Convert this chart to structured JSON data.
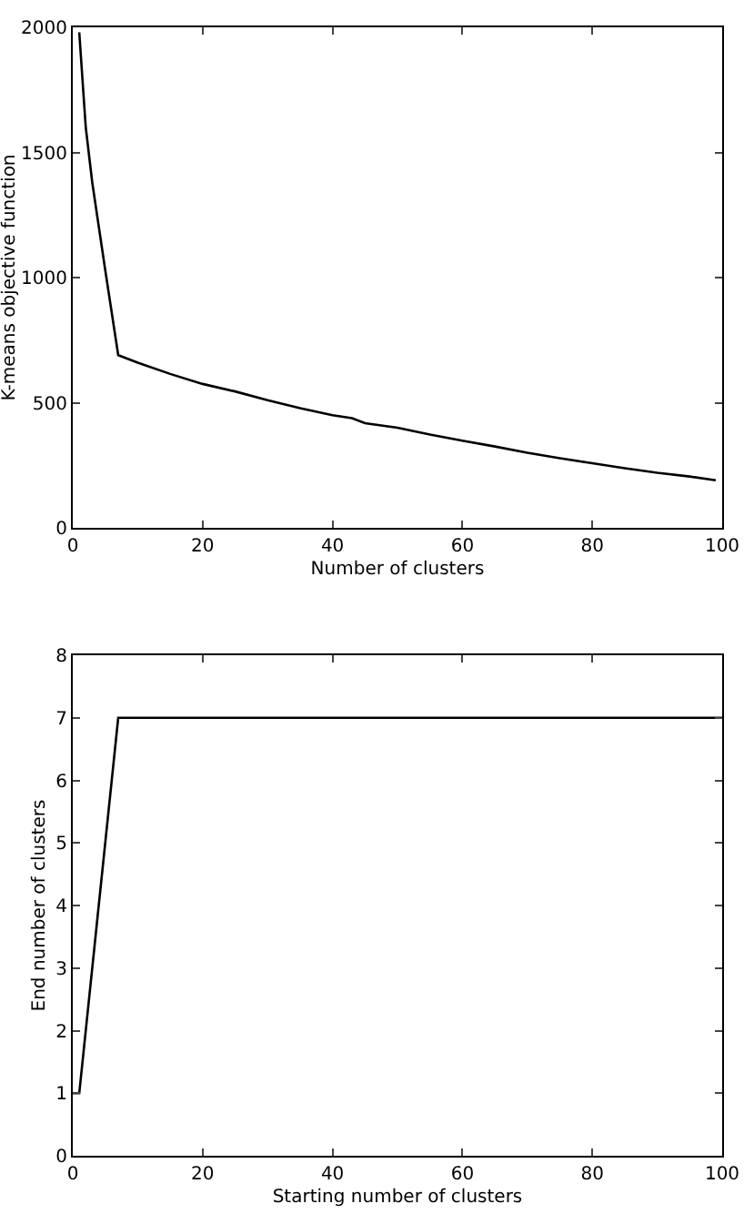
{
  "chart_data": [
    {
      "type": "line",
      "xlabel": "Number of clusters",
      "ylabel": "K-means objective function",
      "xlim": [
        0,
        100
      ],
      "ylim": [
        0,
        2000
      ],
      "xticks": [
        0,
        20,
        40,
        60,
        80,
        100
      ],
      "yticks": [
        0,
        500,
        1000,
        1500,
        2000
      ],
      "series": [
        {
          "color": "#000000",
          "x": [
            1,
            2,
            3,
            5,
            7,
            10,
            15,
            20,
            25,
            30,
            35,
            40,
            43,
            45,
            50,
            55,
            60,
            65,
            70,
            75,
            80,
            85,
            90,
            95,
            99
          ],
          "values": [
            1980,
            1600,
            1380,
            1030,
            690,
            660,
            615,
            575,
            545,
            510,
            478,
            450,
            438,
            418,
            400,
            373,
            348,
            325,
            300,
            278,
            258,
            238,
            220,
            205,
            190
          ]
        }
      ]
    },
    {
      "type": "line",
      "xlabel": "Starting number of clusters",
      "ylabel": "End number of clusters",
      "xlim": [
        0,
        100
      ],
      "ylim": [
        0,
        8
      ],
      "xticks": [
        0,
        20,
        40,
        60,
        80,
        100
      ],
      "yticks": [
        0,
        1,
        2,
        3,
        4,
        5,
        6,
        7,
        8
      ],
      "series": [
        {
          "color": "#000000",
          "x": [
            0,
            1,
            7,
            100
          ],
          "values": [
            1,
            1,
            7,
            7
          ]
        }
      ]
    }
  ]
}
